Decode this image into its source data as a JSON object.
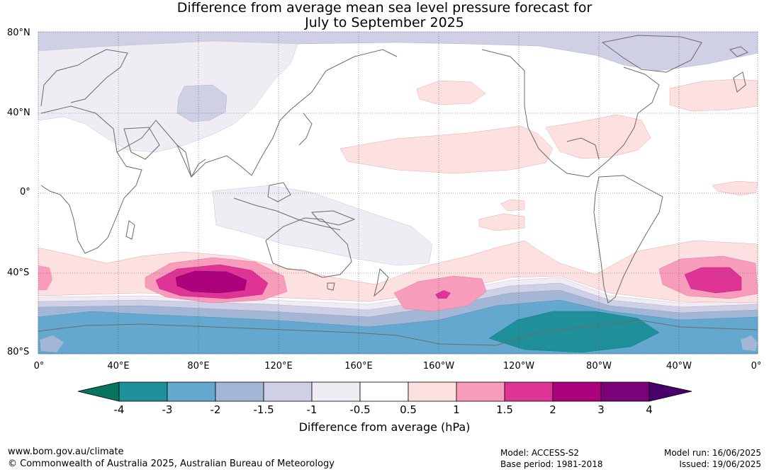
{
  "title_line1": "Difference from average mean sea level pressure forecast for",
  "title_line2": "July to September 2025",
  "lat_labels": [
    "80°N",
    "40°N",
    "0°",
    "40°S",
    "80°S"
  ],
  "lon_labels": [
    "0°",
    "40°E",
    "80°E",
    "120°E",
    "160°E",
    "160°W",
    "120°W",
    "80°W",
    "40°W",
    "0°"
  ],
  "colorbar": {
    "label": "Difference from average (hPa)",
    "ticks": [
      "-4",
      "-3",
      "-2",
      "-1.5",
      "-1",
      "-0.5",
      "0.5",
      "1",
      "1.5",
      "2",
      "3",
      "4"
    ],
    "colors": {
      "below_min": "#06745f",
      "m4_m3": "#1f8f99",
      "m3_m2": "#64a8cf",
      "m2_m15": "#a3b6d6",
      "m15_m1": "#cfcfe6",
      "m1_m05": "#efecf3",
      "m05_05": "#ffffff",
      "p05_1": "#fde0e0",
      "p1_15": "#f79cbb",
      "p15_2": "#dd3496",
      "p2_3": "#ae017e",
      "p3_4": "#7a0177",
      "above_max": "#49006a"
    }
  },
  "footer": {
    "url": "www.bom.gov.au/climate",
    "copyright": "© Commonwealth of Australia 2025, Australian Bureau of Meteorology",
    "model": "Model: ACCESS-S2",
    "base_period": "Base period: 1981-2018",
    "model_run": "Model run: 16/06/2025",
    "issued": "Issued: 19/06/2025"
  }
}
